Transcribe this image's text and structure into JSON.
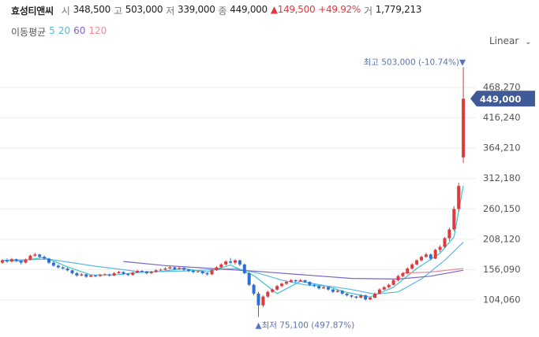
{
  "chart_data": {
    "type": "candlestick",
    "title": "효성티앤씨",
    "quote": [
      {
        "label": "시",
        "text": "348,500"
      },
      {
        "label": "고",
        "text": "503,000"
      },
      {
        "label": "저",
        "text": "339,000"
      },
      {
        "label": "종",
        "text": "449,000"
      }
    ],
    "change": "▲149,500",
    "change_pct": "+49.92%",
    "volume_label": "거",
    "volume": "1,779,213",
    "ma_title": "이동평균",
    "scale_mode": "Linear",
    "up_color": "#e0393e",
    "down_color": "#2d6fd6",
    "ylim": [
      51450,
      523600
    ],
    "yticks": [
      {
        "value": 104060,
        "label": "104,060"
      },
      {
        "value": 156090,
        "label": "156,090"
      },
      {
        "value": 208120,
        "label": "208,120"
      },
      {
        "value": 260150,
        "label": "260,150"
      },
      {
        "value": 312180,
        "label": "312,180"
      },
      {
        "value": 364210,
        "label": "364,210"
      },
      {
        "value": 416240,
        "label": "416,240"
      },
      {
        "value": 468270,
        "label": "468,270"
      }
    ],
    "grid": true,
    "last_price": {
      "value": 449000,
      "label": "449,000"
    },
    "high_note": {
      "value": 503000,
      "text": "최고 503,000 (-10.74%)▼"
    },
    "low_note": {
      "value": 75100,
      "text": "▲최저 75,100 (497.87%)"
    },
    "candles": [
      [
        168000,
        174000,
        166000,
        172000
      ],
      [
        172000,
        175000,
        168000,
        170000
      ],
      [
        170000,
        176000,
        169000,
        174000
      ],
      [
        174000,
        175000,
        169000,
        171000
      ],
      [
        171000,
        172000,
        165000,
        168000
      ],
      [
        168000,
        175000,
        167000,
        173000
      ],
      [
        173000,
        182000,
        172000,
        180000
      ],
      [
        180000,
        185000,
        178000,
        182000
      ],
      [
        182000,
        183000,
        176000,
        178000
      ],
      [
        178000,
        180000,
        173000,
        175000
      ],
      [
        175000,
        176000,
        166000,
        168000
      ],
      [
        168000,
        170000,
        161000,
        163000
      ],
      [
        163000,
        165000,
        158000,
        160000
      ],
      [
        160000,
        162000,
        156000,
        158000
      ],
      [
        158000,
        160000,
        153000,
        155000
      ],
      [
        155000,
        156000,
        148000,
        150000
      ],
      [
        150000,
        152000,
        144000,
        146000
      ],
      [
        146000,
        150000,
        145000,
        148000
      ],
      [
        148000,
        149000,
        142000,
        144000
      ],
      [
        144000,
        148000,
        143000,
        146000
      ],
      [
        146000,
        147000,
        143000,
        145000
      ],
      [
        145000,
        149000,
        144000,
        147000
      ],
      [
        147000,
        150000,
        146000,
        148000
      ],
      [
        148000,
        149000,
        144000,
        146000
      ],
      [
        146000,
        152000,
        145000,
        150000
      ],
      [
        150000,
        154000,
        149000,
        152000
      ],
      [
        152000,
        153000,
        147000,
        149000
      ],
      [
        149000,
        150000,
        145000,
        147000
      ],
      [
        147000,
        153000,
        146000,
        151000
      ],
      [
        151000,
        156000,
        150000,
        154000
      ],
      [
        154000,
        155000,
        151000,
        153000
      ],
      [
        153000,
        154000,
        148000,
        150000
      ],
      [
        150000,
        154000,
        149000,
        152000
      ],
      [
        152000,
        157000,
        151000,
        155000
      ],
      [
        155000,
        158000,
        154000,
        156000
      ],
      [
        156000,
        160000,
        155000,
        158000
      ],
      [
        158000,
        162000,
        157000,
        160000
      ],
      [
        160000,
        161000,
        155000,
        157000
      ],
      [
        157000,
        161000,
        156000,
        159000
      ],
      [
        159000,
        160000,
        154000,
        156000
      ],
      [
        156000,
        157000,
        152000,
        154000
      ],
      [
        154000,
        155000,
        150000,
        152000
      ],
      [
        152000,
        155000,
        151000,
        153000
      ],
      [
        153000,
        154000,
        148000,
        150000
      ],
      [
        150000,
        151000,
        146000,
        148000
      ],
      [
        148000,
        157000,
        147000,
        155000
      ],
      [
        155000,
        162000,
        154000,
        160000
      ],
      [
        160000,
        167000,
        159000,
        165000
      ],
      [
        165000,
        172000,
        163000,
        170000
      ],
      [
        170000,
        176000,
        166000,
        168000
      ],
      [
        168000,
        174000,
        165000,
        172000
      ],
      [
        172000,
        173000,
        162000,
        165000
      ],
      [
        165000,
        166000,
        148000,
        150000
      ],
      [
        150000,
        152000,
        128000,
        130000
      ],
      [
        130000,
        132000,
        112000,
        115000
      ],
      [
        115000,
        118000,
        75100,
        95000
      ],
      [
        95000,
        112000,
        92000,
        110000
      ],
      [
        110000,
        120000,
        108000,
        118000
      ],
      [
        118000,
        124000,
        116000,
        122000
      ],
      [
        122000,
        130000,
        120000,
        128000
      ],
      [
        128000,
        134000,
        126000,
        132000
      ],
      [
        132000,
        137000,
        130000,
        135000
      ],
      [
        135000,
        140000,
        134000,
        138000
      ],
      [
        138000,
        139000,
        134000,
        136000
      ],
      [
        136000,
        140000,
        135000,
        138000
      ],
      [
        138000,
        139000,
        133000,
        135000
      ],
      [
        135000,
        136000,
        128000,
        130000
      ],
      [
        130000,
        132000,
        126000,
        128000
      ],
      [
        128000,
        129000,
        122000,
        124000
      ],
      [
        124000,
        128000,
        123000,
        126000
      ],
      [
        126000,
        127000,
        120000,
        122000
      ],
      [
        122000,
        123000,
        116000,
        118000
      ],
      [
        118000,
        122000,
        117000,
        120000
      ],
      [
        120000,
        121000,
        113000,
        115000
      ],
      [
        115000,
        116000,
        110000,
        112000
      ],
      [
        112000,
        113000,
        108000,
        110000
      ],
      [
        110000,
        111000,
        106000,
        108000
      ],
      [
        108000,
        114000,
        107000,
        112000
      ],
      [
        112000,
        113000,
        103000,
        105000
      ],
      [
        105000,
        110000,
        104000,
        108000
      ],
      [
        108000,
        117000,
        107000,
        115000
      ],
      [
        115000,
        124000,
        114000,
        122000
      ],
      [
        122000,
        128000,
        121000,
        126000
      ],
      [
        126000,
        132000,
        124000,
        130000
      ],
      [
        130000,
        140000,
        129000,
        138000
      ],
      [
        138000,
        147000,
        136000,
        145000
      ],
      [
        145000,
        152000,
        143000,
        150000
      ],
      [
        150000,
        160000,
        148000,
        158000
      ],
      [
        158000,
        167000,
        156000,
        165000
      ],
      [
        165000,
        174000,
        163000,
        172000
      ],
      [
        172000,
        180000,
        170000,
        178000
      ],
      [
        178000,
        185000,
        176000,
        182000
      ],
      [
        182000,
        184000,
        172000,
        175000
      ],
      [
        175000,
        192000,
        174000,
        190000
      ],
      [
        190000,
        198000,
        186000,
        195000
      ],
      [
        195000,
        212000,
        193000,
        210000
      ],
      [
        210000,
        228000,
        205000,
        225000
      ],
      [
        225000,
        265000,
        222000,
        260000
      ],
      [
        260000,
        305000,
        255000,
        299500
      ],
      [
        348500,
        503000,
        339000,
        449000
      ]
    ],
    "series": [
      {
        "name": "5",
        "color": "#3cc4cf",
        "x": [
          0,
          4,
          9,
          14,
          19,
          24,
          29,
          34,
          39,
          44,
          49,
          54,
          59,
          64,
          69,
          74,
          79,
          84,
          89,
          94,
          97,
          99
        ],
        "values": [
          172000,
          171000,
          177000,
          161000,
          147000,
          147000,
          151000,
          153000,
          158000,
          152000,
          164000,
          146000,
          115000,
          136000,
          129000,
          117000,
          109000,
          126000,
          158000,
          184000,
          212000,
          300000
        ]
      },
      {
        "name": "20",
        "color": "#58b8e0",
        "x": [
          0,
          10,
          20,
          30,
          40,
          50,
          55,
          60,
          65,
          70,
          75,
          80,
          85,
          90,
          95,
          99
        ],
        "values": [
          172000,
          174000,
          162000,
          152000,
          154000,
          158000,
          150000,
          138000,
          130000,
          128000,
          122000,
          114000,
          118000,
          140000,
          172000,
          203000
        ]
      },
      {
        "name": "60",
        "color": "#7a62c9",
        "x": [
          26,
          35,
          45,
          55,
          65,
          75,
          85,
          92,
          99
        ],
        "values": [
          170000,
          163000,
          158000,
          153000,
          147000,
          141000,
          140000,
          145000,
          155000
        ]
      },
      {
        "name": "120",
        "color": "#ee8a96",
        "x": [
          86,
          92,
          99
        ],
        "values": [
          150000,
          152000,
          158000
        ]
      }
    ]
  }
}
